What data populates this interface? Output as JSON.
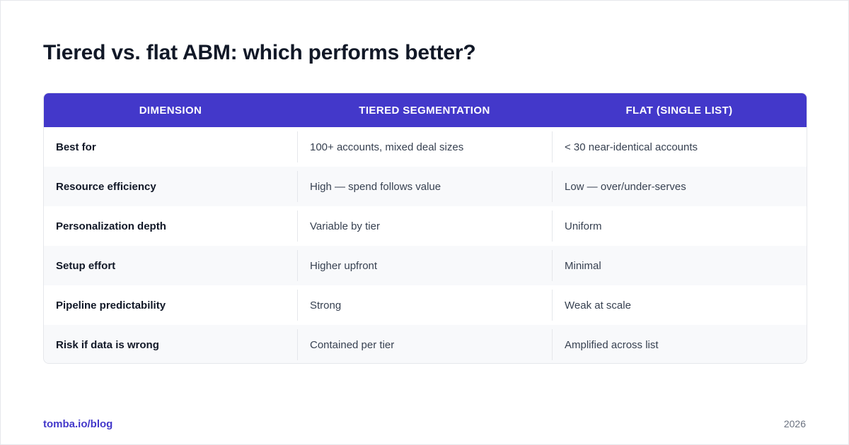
{
  "title": "Tiered vs. flat ABM: which performs better?",
  "table": {
    "headers": [
      "DIMENSION",
      "TIERED SEGMENTATION",
      "FLAT (SINGLE LIST)"
    ],
    "rows": [
      {
        "dimension": "Best for",
        "tiered": "100+ accounts, mixed deal sizes",
        "flat": "< 30 near-identical accounts"
      },
      {
        "dimension": "Resource efficiency",
        "tiered": "High — spend follows value",
        "flat": "Low — over/under-serves"
      },
      {
        "dimension": "Personalization depth",
        "tiered": "Variable by tier",
        "flat": "Uniform"
      },
      {
        "dimension": "Setup effort",
        "tiered": "Higher upfront",
        "flat": "Minimal"
      },
      {
        "dimension": "Pipeline predictability",
        "tiered": "Strong",
        "flat": "Weak at scale"
      },
      {
        "dimension": "Risk if data is wrong",
        "tiered": "Contained per tier",
        "flat": "Amplified across list"
      }
    ]
  },
  "footer": {
    "link": "tomba.io/blog",
    "year": "2026"
  },
  "colors": {
    "accent": "#4338ca",
    "title": "#111827",
    "row_alt": "#f8f9fb"
  }
}
